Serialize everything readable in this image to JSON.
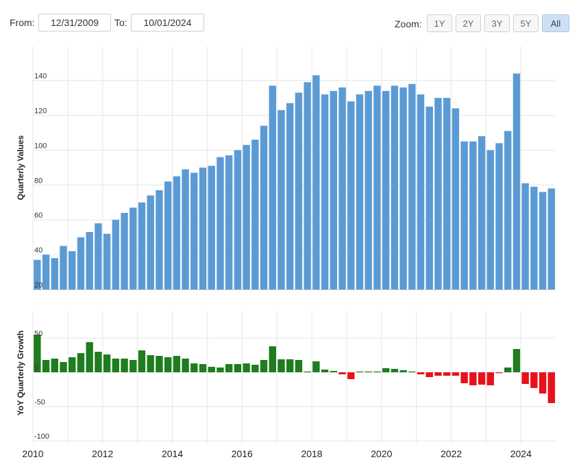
{
  "range": {
    "from_label": "From:",
    "from_value": "12/31/2009",
    "to_label": "To:",
    "to_value": "10/01/2024"
  },
  "zoom": {
    "label": "Zoom:",
    "options": [
      "1Y",
      "2Y",
      "3Y",
      "5Y",
      "All"
    ],
    "selected": "All"
  },
  "colors": {
    "bar": "#5b9bd5",
    "positive": "#1e7d1e",
    "negative": "#e8111b",
    "grid": "#e6e6e6"
  },
  "chart_data": [
    {
      "type": "bar",
      "ylabel": "Quarterly Values",
      "ylim": [
        20,
        150
      ],
      "yticks": [
        20,
        40,
        60,
        80,
        100,
        120,
        140
      ],
      "x_start": 2010,
      "x_step": 0.25,
      "xticks": [
        2010,
        2012,
        2014,
        2016,
        2018,
        2020,
        2022,
        2024
      ],
      "grid": true,
      "values": [
        37,
        40,
        38,
        45,
        42,
        50,
        53,
        58,
        52,
        60,
        64,
        67,
        70,
        74,
        77,
        82,
        85,
        89,
        87,
        90,
        91,
        96,
        97,
        100,
        103,
        106,
        114,
        137,
        123,
        127,
        133,
        139,
        143,
        132,
        134,
        136,
        128,
        132,
        134,
        137,
        134,
        137,
        136,
        138,
        132,
        125,
        130,
        130,
        124,
        105,
        105,
        108,
        100,
        104,
        111,
        144,
        81,
        79,
        76,
        78
      ]
    },
    {
      "type": "bar",
      "ylabel": "YoY Quarterly Growth",
      "ylim": [
        -100,
        60
      ],
      "yticks": [
        -100,
        -50,
        0,
        50
      ],
      "x_start": 2010,
      "x_step": 0.25,
      "grid": true,
      "values": [
        55,
        18,
        20,
        15,
        22,
        28,
        44,
        30,
        26,
        20,
        20,
        18,
        32,
        25,
        24,
        22,
        24,
        20,
        13,
        12,
        8,
        7,
        12,
        12,
        13,
        11,
        18,
        38,
        19,
        19,
        18,
        1,
        16,
        4,
        2,
        -3,
        -10,
        1,
        0,
        1,
        6,
        5,
        3,
        1,
        -3,
        -7,
        -5,
        -5,
        -5,
        -16,
        -19,
        -18,
        -19,
        -1,
        7,
        34,
        -17,
        -23,
        -31,
        -45
      ]
    }
  ]
}
